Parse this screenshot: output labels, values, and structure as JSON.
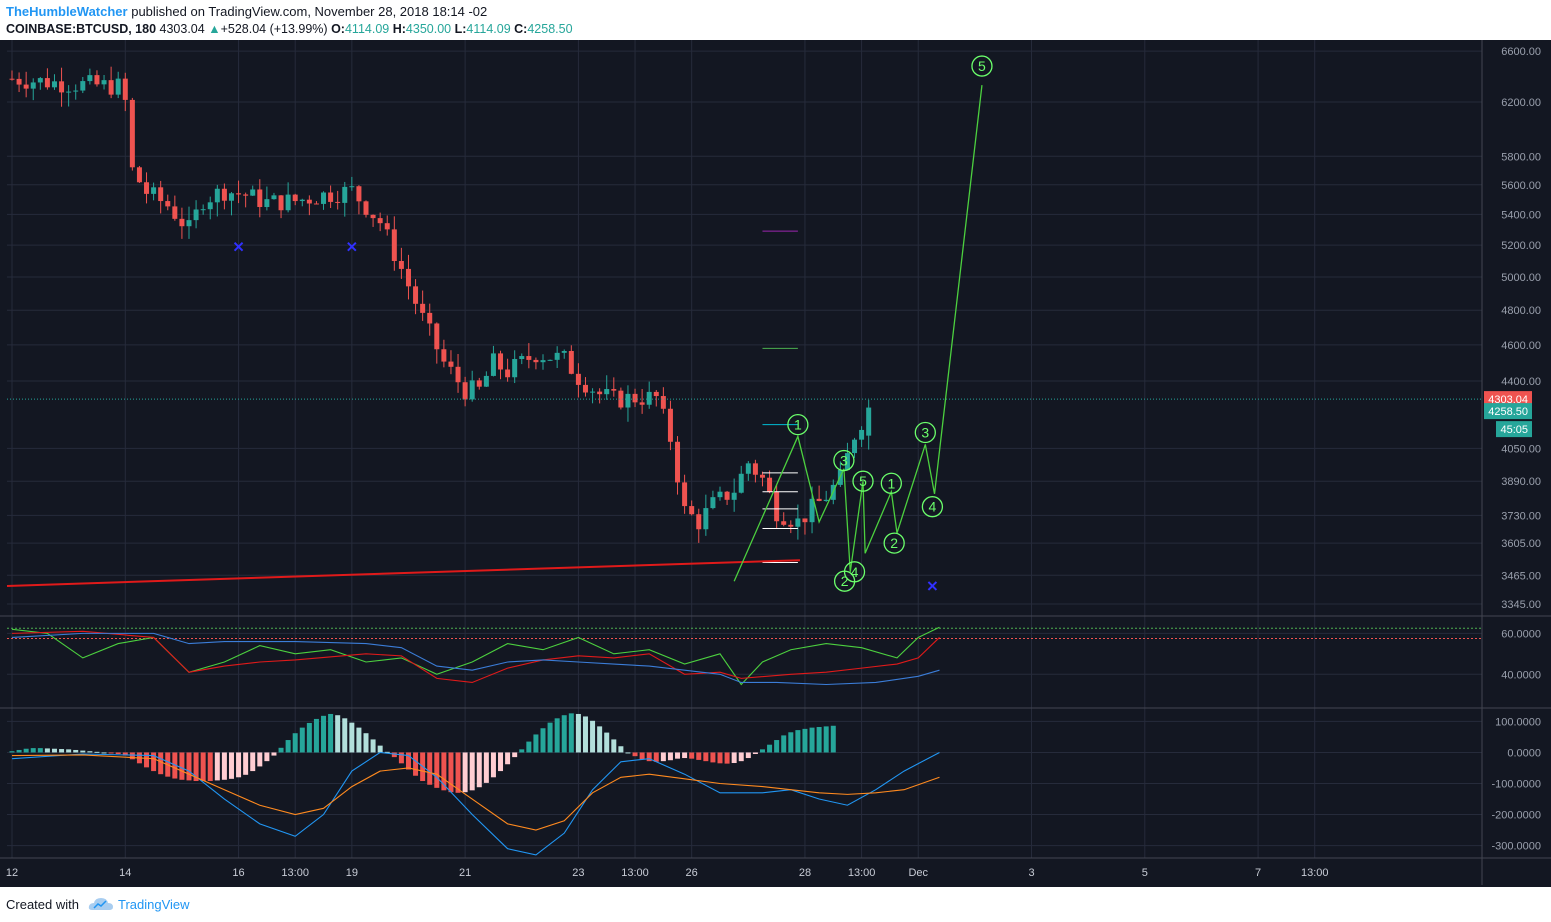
{
  "header": {
    "author": "TheHumbleWatcher",
    "published": "published on TradingView.com, November 28, 2018 18:14 -02",
    "symbol": "COINBASE:BTCUSD, 180",
    "last": "4303.04",
    "change_arrow": "▲",
    "change": "+528.04 (+13.99%)",
    "o_label": "O:",
    "o_value": "4114.09",
    "h_label": "H:",
    "h_value": "4350.00",
    "l_label": "L:",
    "l_value": "4114.09",
    "c_label": "C:",
    "c_value": "4258.50"
  },
  "footer": {
    "created_with": "Created with",
    "brand": "TradingView"
  },
  "colors": {
    "background": "#131722",
    "grid": "#262b3b",
    "up": "#26a69a",
    "down": "#ef5350",
    "wave": "#4cd03f",
    "wave_label": "#6bff6b",
    "trendline": "#e01a1a",
    "marker": "#3030ff"
  },
  "chart_data": [
    {
      "type": "candlestick",
      "name": "price",
      "scale": "log",
      "ylim": [
        3300,
        6650
      ],
      "y_ticks": [
        "6600.00",
        "6200.00",
        "5800.00",
        "5600.00",
        "5400.00",
        "5200.00",
        "5000.00",
        "4800.00",
        "4600.00",
        "4400.00",
        "4050.00",
        "3890.00",
        "3730.00",
        "3605.00",
        "3465.00",
        "3345.00"
      ],
      "y_tick_values": [
        6600,
        6200,
        5800,
        5600,
        5400,
        5200,
        5000,
        4800,
        4600,
        4400,
        4050,
        3890,
        3730,
        3605,
        3465,
        3345
      ],
      "x_ticks": [
        "12",
        "14",
        "16",
        "13:00",
        "19",
        "21",
        "23",
        "13:00",
        "26",
        "28",
        "13:00",
        "Dec",
        "3",
        "5",
        "7",
        "13:00"
      ],
      "x_tick_bars": [
        0,
        16,
        32,
        40,
        48,
        64,
        80,
        88,
        96,
        112,
        120,
        128,
        144,
        160,
        176,
        184
      ],
      "close_path": [
        [
          0,
          6380
        ],
        [
          8,
          6340
        ],
        [
          15,
          6320
        ],
        [
          16,
          6200
        ],
        [
          17,
          5700
        ],
        [
          19,
          5550
        ],
        [
          22,
          5460
        ],
        [
          25,
          5300
        ],
        [
          27,
          5500
        ],
        [
          30,
          5560
        ],
        [
          33,
          5530
        ],
        [
          36,
          5480
        ],
        [
          40,
          5490
        ],
        [
          44,
          5530
        ],
        [
          48,
          5560
        ],
        [
          52,
          5350
        ],
        [
          55,
          5050
        ],
        [
          58,
          4750
        ],
        [
          61,
          4500
        ],
        [
          64,
          4350
        ],
        [
          66,
          4350
        ],
        [
          68,
          4500
        ],
        [
          70,
          4450
        ],
        [
          74,
          4550
        ],
        [
          78,
          4520
        ],
        [
          80,
          4420
        ],
        [
          83,
          4330
        ],
        [
          85,
          4300
        ],
        [
          88,
          4310
        ],
        [
          91,
          4310
        ],
        [
          93,
          4100
        ],
        [
          95,
          3750
        ],
        [
          97,
          3700
        ],
        [
          99,
          3780
        ],
        [
          102,
          3850
        ],
        [
          104,
          3980
        ],
        [
          106,
          3900
        ],
        [
          108,
          3750
        ],
        [
          111,
          3700
        ],
        [
          113,
          3760
        ],
        [
          115,
          3820
        ],
        [
          117,
          3900
        ],
        [
          119,
          4120
        ],
        [
          121,
          4260
        ]
      ],
      "current_price": "4303.04",
      "close_price": "4258.50",
      "countdown": "45:05",
      "horizontal_levels": [
        {
          "price": 5290,
          "color": "#9c27b0"
        },
        {
          "price": 4580,
          "color": "#4caf50"
        },
        {
          "price": 4170,
          "color": "#00bcd4"
        },
        {
          "price": 3930,
          "color": "#ffffff"
        },
        {
          "price": 3840,
          "color": "#ffffff"
        },
        {
          "price": 3760,
          "color": "#ffffff"
        },
        {
          "price": 3670,
          "color": "#ffffff"
        },
        {
          "price": 3520,
          "color": "#ffffff"
        }
      ],
      "trendline": [
        [
          0,
          3420
        ],
        [
          112,
          3530
        ]
      ],
      "wave_labels": [
        {
          "label": "1",
          "bar": 111,
          "price": 4170
        },
        {
          "label": "3",
          "bar": 117.5,
          "price": 3990
        },
        {
          "label": "5",
          "bar": 120.2,
          "price": 3890
        },
        {
          "label": "2",
          "bar": 117.6,
          "price": 3440
        },
        {
          "label": "4",
          "bar": 119,
          "price": 3480
        },
        {
          "label": "1",
          "bar": 124.2,
          "price": 3880
        },
        {
          "label": "2",
          "bar": 124.6,
          "price": 3605
        },
        {
          "label": "3",
          "bar": 129,
          "price": 4130
        },
        {
          "label": "4",
          "bar": 130,
          "price": 3770
        },
        {
          "label": "5",
          "bar": 137,
          "price": 6480
        }
      ],
      "wave_path": [
        [
          102,
          3440
        ],
        [
          111,
          4110
        ],
        [
          114,
          3700
        ],
        [
          117.5,
          3950
        ],
        [
          118.4,
          3480
        ],
        [
          120.2,
          3890
        ],
        [
          120.5,
          3560
        ],
        [
          124.2,
          3840
        ],
        [
          125,
          3650
        ],
        [
          129,
          4070
        ],
        [
          130.3,
          3830
        ],
        [
          137,
          6330
        ]
      ],
      "markers": [
        [
          32,
          5190
        ],
        [
          48,
          5190
        ],
        [
          130,
          3420
        ]
      ]
    },
    {
      "type": "line",
      "name": "oscillator",
      "ylim": [
        24,
        68
      ],
      "y_ticks": [
        "60.0000",
        "40.0000"
      ],
      "y_tick_values": [
        60,
        40
      ],
      "levels": [
        {
          "value": 62.5,
          "color": "#4caf50"
        },
        {
          "value": 57.5,
          "color": "#ef5350"
        }
      ],
      "series": [
        {
          "color": "#4cd03f",
          "values": [
            [
              0,
              62
            ],
            [
              5,
              60
            ],
            [
              10,
              48
            ],
            [
              15,
              55
            ],
            [
              20,
              58
            ],
            [
              25,
              41
            ],
            [
              30,
              46
            ],
            [
              35,
              54
            ],
            [
              40,
              50
            ],
            [
              45,
              52
            ],
            [
              50,
              46
            ],
            [
              55,
              48
            ],
            [
              60,
              40
            ],
            [
              65,
              46
            ],
            [
              70,
              55
            ],
            [
              75,
              52
            ],
            [
              80,
              58
            ],
            [
              85,
              50
            ],
            [
              90,
              52
            ],
            [
              95,
              45
            ],
            [
              100,
              50
            ],
            [
              103,
              35
            ],
            [
              106,
              46
            ],
            [
              110,
              52
            ],
            [
              115,
              55
            ],
            [
              120,
              53
            ],
            [
              125,
              48
            ],
            [
              128,
              58
            ],
            [
              131,
              63
            ]
          ]
        },
        {
          "color": "#e01a1a",
          "values": [
            [
              0,
              60
            ],
            [
              10,
              61
            ],
            [
              20,
              58
            ],
            [
              25,
              41
            ],
            [
              30,
              44
            ],
            [
              35,
              46
            ],
            [
              40,
              47
            ],
            [
              50,
              50
            ],
            [
              55,
              49
            ],
            [
              60,
              38
            ],
            [
              65,
              36
            ],
            [
              70,
              43
            ],
            [
              75,
              47
            ],
            [
              80,
              49
            ],
            [
              85,
              48
            ],
            [
              90,
              50
            ],
            [
              95,
              40
            ],
            [
              100,
              41
            ],
            [
              103,
              38
            ],
            [
              110,
              40
            ],
            [
              115,
              41
            ],
            [
              120,
              43
            ],
            [
              125,
              45
            ],
            [
              128,
              48
            ],
            [
              131,
              58
            ]
          ]
        },
        {
          "color": "#3b7dd8",
          "values": [
            [
              0,
              58
            ],
            [
              10,
              60
            ],
            [
              20,
              60
            ],
            [
              25,
              55
            ],
            [
              30,
              56
            ],
            [
              40,
              56
            ],
            [
              50,
              55
            ],
            [
              55,
              53
            ],
            [
              60,
              44
            ],
            [
              65,
              42
            ],
            [
              70,
              46
            ],
            [
              75,
              47
            ],
            [
              80,
              46
            ],
            [
              85,
              45
            ],
            [
              90,
              44
            ],
            [
              95,
              42
            ],
            [
              100,
              40
            ],
            [
              103,
              36
            ],
            [
              108,
              36
            ],
            [
              115,
              35
            ],
            [
              122,
              36
            ],
            [
              128,
              39
            ],
            [
              131,
              42
            ]
          ]
        }
      ]
    },
    {
      "type": "bar",
      "name": "macd",
      "ylim": [
        -340,
        140
      ],
      "y_ticks": [
        "100.0000",
        "0.0000",
        "-100.0000",
        "-200.0000",
        "-300.0000"
      ],
      "y_tick_values": [
        100,
        0,
        -100,
        -200,
        -300
      ],
      "histogram_up": "#26a69a",
      "histogram_up_fade": "#b2dfdb",
      "histogram_down": "#ef5350",
      "histogram_down_fade": "#ffcdd2",
      "histogram": [
        4,
        8,
        12,
        14,
        14,
        13,
        12,
        11,
        10,
        8,
        6,
        4,
        2,
        0,
        -2,
        -5,
        -10,
        -22,
        -35,
        -48,
        -60,
        -70,
        -78,
        -84,
        -88,
        -90,
        -92,
        -92,
        -92,
        -90,
        -88,
        -85,
        -80,
        -72,
        -60,
        -45,
        -28,
        -10,
        15,
        40,
        62,
        80,
        95,
        108,
        118,
        124,
        120,
        110,
        96,
        80,
        62,
        42,
        22,
        2,
        -15,
        -35,
        -55,
        -75,
        -92,
        -104,
        -114,
        -122,
        -128,
        -130,
        -128,
        -122,
        -112,
        -98,
        -80,
        -60,
        -38,
        -15,
        10,
        35,
        58,
        78,
        96,
        110,
        120,
        126,
        124,
        116,
        102,
        84,
        64,
        42,
        20,
        0,
        -12,
        -22,
        -28,
        -30,
        -28,
        -25,
        -20,
        -18,
        -20,
        -24,
        -28,
        -32,
        -35,
        -36,
        -34,
        -28,
        -18,
        -5,
        10,
        25,
        40,
        55,
        65,
        72,
        76,
        80,
        82,
        84,
        86
      ],
      "macd": [
        [
          0,
          -20
        ],
        [
          10,
          -5
        ],
        [
          20,
          -10
        ],
        [
          25,
          -60
        ],
        [
          30,
          -150
        ],
        [
          35,
          -230
        ],
        [
          40,
          -270
        ],
        [
          44,
          -200
        ],
        [
          48,
          -60
        ],
        [
          52,
          0
        ],
        [
          56,
          -10
        ],
        [
          60,
          -80
        ],
        [
          65,
          -200
        ],
        [
          70,
          -310
        ],
        [
          74,
          -330
        ],
        [
          78,
          -260
        ],
        [
          82,
          -120
        ],
        [
          86,
          -30
        ],
        [
          90,
          -20
        ],
        [
          95,
          -70
        ],
        [
          100,
          -130
        ],
        [
          106,
          -130
        ],
        [
          110,
          -120
        ],
        [
          114,
          -150
        ],
        [
          118,
          -170
        ],
        [
          122,
          -120
        ],
        [
          126,
          -60
        ],
        [
          131,
          0
        ]
      ],
      "signal": [
        [
          0,
          -10
        ],
        [
          10,
          -8
        ],
        [
          20,
          -20
        ],
        [
          25,
          -70
        ],
        [
          30,
          -120
        ],
        [
          35,
          -170
        ],
        [
          40,
          -200
        ],
        [
          44,
          -180
        ],
        [
          48,
          -110
        ],
        [
          52,
          -60
        ],
        [
          56,
          -50
        ],
        [
          60,
          -70
        ],
        [
          65,
          -150
        ],
        [
          70,
          -230
        ],
        [
          74,
          -250
        ],
        [
          78,
          -220
        ],
        [
          82,
          -130
        ],
        [
          86,
          -80
        ],
        [
          90,
          -70
        ],
        [
          95,
          -85
        ],
        [
          100,
          -100
        ],
        [
          106,
          -110
        ],
        [
          110,
          -120
        ],
        [
          114,
          -130
        ],
        [
          118,
          -135
        ],
        [
          122,
          -130
        ],
        [
          126,
          -120
        ],
        [
          131,
          -80
        ]
      ]
    }
  ]
}
